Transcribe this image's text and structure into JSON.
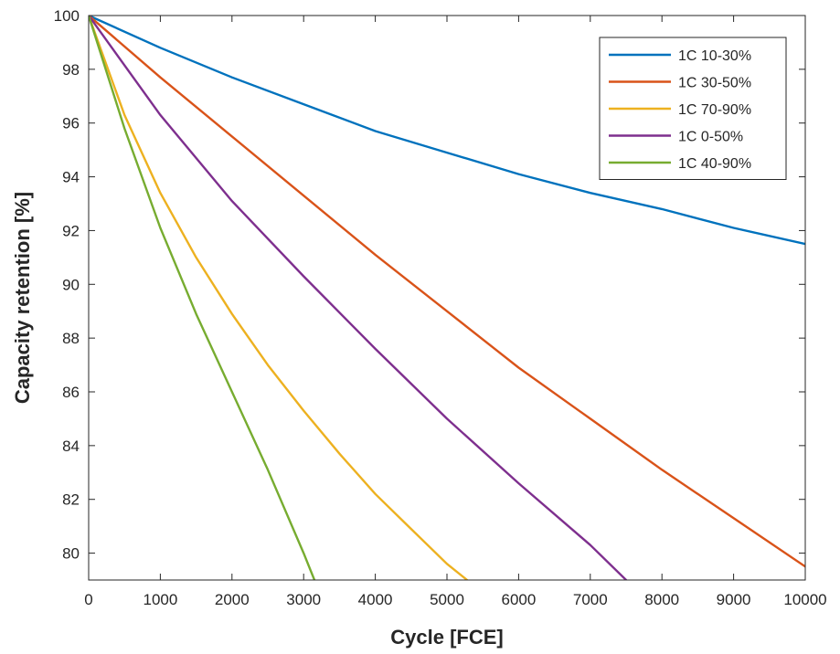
{
  "chart_data": {
    "type": "line",
    "xlabel": "Cycle [FCE]",
    "ylabel": "Capacity retention [%]",
    "xlim": [
      0,
      10000
    ],
    "ylim": [
      79,
      100
    ],
    "xticks": [
      0,
      1000,
      2000,
      3000,
      4000,
      5000,
      6000,
      7000,
      8000,
      9000,
      10000
    ],
    "yticks": [
      80,
      82,
      84,
      86,
      88,
      90,
      92,
      94,
      96,
      98,
      100
    ],
    "grid": false,
    "legend_position": "top-right",
    "series": [
      {
        "name": "1C 10-30%",
        "color": "#0072BD",
        "points": [
          [
            0,
            100
          ],
          [
            1000,
            98.8
          ],
          [
            2000,
            97.7
          ],
          [
            3000,
            96.7
          ],
          [
            4000,
            95.7
          ],
          [
            5000,
            94.9
          ],
          [
            6000,
            94.1
          ],
          [
            7000,
            93.4
          ],
          [
            8000,
            92.8
          ],
          [
            9000,
            92.1
          ],
          [
            10000,
            91.5
          ]
        ]
      },
      {
        "name": "1C 30-50%",
        "color": "#D95319",
        "points": [
          [
            0,
            100
          ],
          [
            1000,
            97.7
          ],
          [
            2000,
            95.5
          ],
          [
            3000,
            93.3
          ],
          [
            4000,
            91.1
          ],
          [
            5000,
            89.0
          ],
          [
            6000,
            86.9
          ],
          [
            7000,
            85.0
          ],
          [
            8000,
            83.1
          ],
          [
            9000,
            81.3
          ],
          [
            10000,
            79.5
          ]
        ]
      },
      {
        "name": "1C 70-90%",
        "color": "#EDB120",
        "points": [
          [
            0,
            100
          ],
          [
            500,
            96.3
          ],
          [
            1000,
            93.4
          ],
          [
            1500,
            91.0
          ],
          [
            2000,
            88.9
          ],
          [
            2500,
            87.0
          ],
          [
            3000,
            85.3
          ],
          [
            3500,
            83.7
          ],
          [
            4000,
            82.2
          ],
          [
            4500,
            80.9
          ],
          [
            5000,
            79.6
          ],
          [
            5280,
            79.0
          ]
        ]
      },
      {
        "name": "1C 0-50%",
        "color": "#7E2F8E",
        "points": [
          [
            0,
            100
          ],
          [
            1000,
            96.3
          ],
          [
            2000,
            93.1
          ],
          [
            3000,
            90.3
          ],
          [
            4000,
            87.6
          ],
          [
            5000,
            85.0
          ],
          [
            6000,
            82.6
          ],
          [
            7000,
            80.3
          ],
          [
            7500,
            79.0
          ]
        ]
      },
      {
        "name": "1C 40-90%",
        "color": "#77AC30",
        "points": [
          [
            0,
            100
          ],
          [
            500,
            95.8
          ],
          [
            1000,
            92.1
          ],
          [
            1500,
            88.9
          ],
          [
            2000,
            86.0
          ],
          [
            2500,
            83.1
          ],
          [
            3000,
            80.0
          ],
          [
            3150,
            79.0
          ]
        ]
      }
    ]
  }
}
